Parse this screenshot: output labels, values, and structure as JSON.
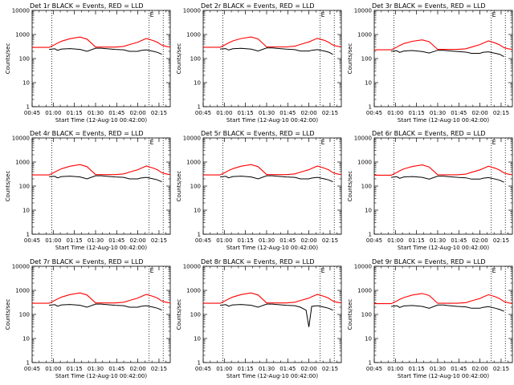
{
  "figure": {
    "background": "#ffffff",
    "axis_color": "#000000",
    "events_color": "#000000",
    "lld_color": "#ff0000",
    "chart_type": "line"
  },
  "shared": {
    "ylabel": "Counts/sec",
    "xlabel": "Start Time (12-Aug-10 00:42:00)",
    "yscale": "log",
    "ylim": [
      1,
      10000
    ],
    "ytick_values": [
      1,
      10,
      100,
      1000,
      10000
    ],
    "ytick_labels": [
      "1",
      "10",
      "100",
      "1000",
      "10000"
    ],
    "xlim_minutes": [
      3,
      101
    ],
    "xtick_minutes": [
      3,
      18,
      33,
      48,
      63,
      78,
      93
    ],
    "xtick_labels": [
      "00:45",
      "01:00",
      "01:15",
      "01:30",
      "01:45",
      "02:00",
      "02:15"
    ],
    "vertical_dotted_lines_minutes": [
      17,
      86,
      96
    ],
    "marker_text": "E"
  },
  "chart_data": [
    {
      "title": "Det 1r BLACK = Events, RED = LLD",
      "type": "line",
      "x_minutes": [
        3,
        15,
        19,
        21,
        24,
        30,
        37,
        42,
        48,
        52,
        55,
        62,
        68,
        72,
        78,
        80,
        84,
        89,
        92,
        95,
        98,
        101
      ],
      "series": [
        {
          "name": "Events",
          "color": "#000000",
          "values": [
            null,
            240,
            255,
            220,
            250,
            260,
            240,
            200,
            270,
            270,
            260,
            240,
            230,
            200,
            200,
            215,
            230,
            200,
            180,
            150,
            null,
            null
          ]
        },
        {
          "name": "LLD",
          "color": "#ff0000",
          "values": [
            290,
            290,
            380,
            440,
            530,
            670,
            780,
            640,
            300,
            300,
            300,
            300,
            320,
            380,
            480,
            540,
            680,
            560,
            470,
            360,
            320,
            300
          ]
        }
      ]
    },
    {
      "title": "Det 2r BLACK = Events, RED = LLD",
      "type": "line",
      "x_minutes": [
        3,
        15,
        19,
        21,
        24,
        30,
        37,
        42,
        48,
        52,
        55,
        62,
        68,
        72,
        78,
        80,
        84,
        89,
        92,
        95,
        98,
        101
      ],
      "series": [
        {
          "name": "Events",
          "color": "#000000",
          "values": [
            null,
            250,
            260,
            225,
            255,
            265,
            245,
            205,
            275,
            275,
            265,
            245,
            235,
            205,
            205,
            220,
            235,
            205,
            185,
            150,
            null,
            null
          ]
        },
        {
          "name": "LLD",
          "color": "#ff0000",
          "values": [
            295,
            295,
            385,
            445,
            540,
            680,
            790,
            650,
            305,
            305,
            305,
            305,
            325,
            385,
            490,
            550,
            690,
            570,
            475,
            365,
            325,
            305
          ]
        }
      ]
    },
    {
      "title": "Det 3r BLACK = Events, RED = LLD",
      "type": "line",
      "x_minutes": [
        3,
        15,
        19,
        21,
        24,
        30,
        37,
        42,
        48,
        52,
        55,
        62,
        68,
        72,
        78,
        80,
        84,
        89,
        92,
        95,
        98,
        101
      ],
      "series": [
        {
          "name": "Events",
          "color": "#000000",
          "values": [
            null,
            200,
            210,
            180,
            205,
            215,
            195,
            170,
            220,
            220,
            210,
            195,
            185,
            165,
            165,
            180,
            190,
            165,
            150,
            120,
            null,
            null
          ]
        },
        {
          "name": "LLD",
          "color": "#ff0000",
          "values": [
            230,
            230,
            300,
            350,
            420,
            520,
            600,
            500,
            240,
            240,
            240,
            240,
            255,
            300,
            380,
            430,
            540,
            440,
            370,
            285,
            255,
            240
          ]
        }
      ]
    },
    {
      "title": "Det 4r BLACK = Events, RED = LLD",
      "type": "line",
      "x_minutes": [
        3,
        15,
        19,
        21,
        24,
        30,
        37,
        42,
        48,
        52,
        55,
        62,
        68,
        72,
        78,
        80,
        84,
        89,
        92,
        95,
        98,
        101
      ],
      "series": [
        {
          "name": "Events",
          "color": "#000000",
          "values": [
            null,
            245,
            255,
            220,
            250,
            260,
            240,
            200,
            270,
            270,
            260,
            240,
            230,
            200,
            200,
            215,
            230,
            200,
            180,
            150,
            null,
            null
          ]
        },
        {
          "name": "LLD",
          "color": "#ff0000",
          "values": [
            290,
            290,
            380,
            440,
            530,
            670,
            780,
            640,
            300,
            300,
            300,
            300,
            320,
            380,
            480,
            540,
            680,
            560,
            470,
            360,
            320,
            300
          ]
        }
      ]
    },
    {
      "title": "Det 5r BLACK = Events, RED = LLD",
      "type": "line",
      "x_minutes": [
        3,
        15,
        19,
        21,
        24,
        30,
        37,
        42,
        48,
        52,
        55,
        62,
        68,
        72,
        78,
        80,
        84,
        89,
        92,
        95,
        98,
        101
      ],
      "series": [
        {
          "name": "Events",
          "color": "#000000",
          "values": [
            null,
            240,
            255,
            220,
            250,
            260,
            240,
            200,
            270,
            270,
            260,
            240,
            230,
            200,
            200,
            215,
            230,
            200,
            180,
            150,
            null,
            null
          ]
        },
        {
          "name": "LLD",
          "color": "#ff0000",
          "values": [
            290,
            290,
            380,
            440,
            530,
            670,
            780,
            640,
            300,
            300,
            300,
            300,
            320,
            380,
            480,
            540,
            680,
            560,
            470,
            360,
            320,
            300
          ]
        }
      ]
    },
    {
      "title": "Det 6r BLACK = Events, RED = LLD",
      "type": "line",
      "x_minutes": [
        3,
        15,
        19,
        21,
        24,
        30,
        37,
        42,
        48,
        52,
        55,
        62,
        68,
        72,
        78,
        80,
        84,
        89,
        92,
        95,
        98,
        101
      ],
      "series": [
        {
          "name": "Events",
          "color": "#000000",
          "values": [
            null,
            230,
            245,
            210,
            240,
            250,
            230,
            195,
            260,
            260,
            250,
            230,
            220,
            195,
            195,
            210,
            225,
            195,
            175,
            145,
            null,
            null
          ]
        },
        {
          "name": "LLD",
          "color": "#ff0000",
          "values": [
            285,
            285,
            370,
            430,
            520,
            650,
            760,
            620,
            295,
            295,
            295,
            295,
            315,
            375,
            470,
            530,
            670,
            550,
            460,
            355,
            315,
            295
          ]
        }
      ]
    },
    {
      "title": "Det 7r BLACK = Events, RED = LLD",
      "type": "line",
      "x_minutes": [
        3,
        15,
        19,
        21,
        24,
        30,
        37,
        42,
        48,
        52,
        55,
        62,
        68,
        72,
        78,
        80,
        84,
        89,
        92,
        95,
        98,
        101
      ],
      "series": [
        {
          "name": "Events",
          "color": "#000000",
          "values": [
            null,
            240,
            255,
            220,
            250,
            260,
            240,
            200,
            270,
            270,
            260,
            240,
            230,
            200,
            200,
            215,
            230,
            200,
            180,
            150,
            null,
            null
          ]
        },
        {
          "name": "LLD",
          "color": "#ff0000",
          "values": [
            290,
            290,
            380,
            440,
            530,
            670,
            780,
            640,
            300,
            300,
            300,
            300,
            320,
            380,
            480,
            540,
            680,
            560,
            470,
            360,
            320,
            300
          ]
        }
      ]
    },
    {
      "title": "Det 8r BLACK = Events, RED = LLD",
      "type": "line",
      "x_minutes": [
        3,
        15,
        19,
        21,
        24,
        30,
        37,
        42,
        48,
        52,
        55,
        62,
        68,
        72,
        76,
        78,
        80,
        84,
        89,
        92,
        95,
        98,
        101
      ],
      "series": [
        {
          "name": "Events",
          "color": "#000000",
          "values": [
            null,
            240,
            255,
            220,
            250,
            260,
            240,
            200,
            270,
            270,
            260,
            240,
            230,
            200,
            150,
            30,
            215,
            230,
            200,
            180,
            150,
            null,
            null
          ]
        },
        {
          "name": "LLD",
          "color": "#ff0000",
          "values": [
            290,
            290,
            380,
            440,
            530,
            670,
            780,
            640,
            300,
            300,
            300,
            300,
            320,
            380,
            440,
            480,
            540,
            680,
            560,
            470,
            360,
            320,
            300
          ]
        }
      ]
    },
    {
      "title": "Det 9r BLACK = Events, RED = LLD",
      "type": "line",
      "x_minutes": [
        3,
        15,
        19,
        21,
        24,
        30,
        37,
        42,
        48,
        52,
        55,
        62,
        68,
        72,
        78,
        80,
        84,
        89,
        92,
        95,
        98,
        101
      ],
      "series": [
        {
          "name": "Events",
          "color": "#000000",
          "values": [
            null,
            215,
            230,
            195,
            225,
            235,
            215,
            180,
            245,
            245,
            235,
            215,
            205,
            180,
            180,
            195,
            210,
            180,
            160,
            135,
            null,
            null
          ]
        },
        {
          "name": "LLD",
          "color": "#ff0000",
          "values": [
            280,
            280,
            360,
            420,
            500,
            640,
            740,
            610,
            290,
            290,
            290,
            290,
            310,
            365,
            460,
            520,
            660,
            540,
            450,
            345,
            305,
            285
          ]
        }
      ]
    }
  ]
}
